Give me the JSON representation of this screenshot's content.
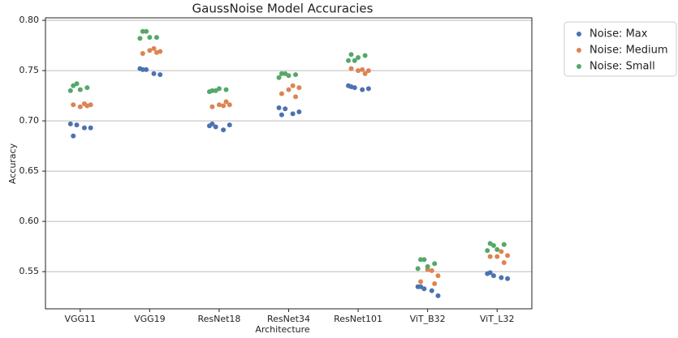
{
  "chart_data": {
    "type": "strip",
    "title": "GaussNoise Model Accuracies",
    "xlabel": "Architecture",
    "ylabel": "Accuracy",
    "categories": [
      "VGG11",
      "VGG19",
      "ResNet18",
      "ResNet34",
      "ResNet101",
      "ViT_B32",
      "ViT_L32"
    ],
    "series": [
      {
        "name": "Noise: Max",
        "color": "#4c72b0",
        "values": [
          [
            0.697,
            0.696,
            0.693,
            0.693,
            0.685
          ],
          [
            0.752,
            0.751,
            0.747,
            0.746,
            0.751
          ],
          [
            0.695,
            0.694,
            0.691,
            0.696,
            0.697
          ],
          [
            0.713,
            0.712,
            0.707,
            0.709,
            0.706
          ],
          [
            0.735,
            0.733,
            0.731,
            0.732,
            0.734
          ],
          [
            0.535,
            0.533,
            0.531,
            0.526,
            0.535
          ],
          [
            0.548,
            0.546,
            0.544,
            0.543,
            0.549
          ]
        ]
      },
      {
        "name": "Noise: Medium",
        "color": "#dd8452",
        "values": [
          [
            0.717,
            0.716,
            0.716,
            0.715,
            0.714
          ],
          [
            0.772,
            0.769,
            0.767,
            0.768,
            0.77
          ],
          [
            0.715,
            0.716,
            0.714,
            0.719,
            0.716
          ],
          [
            0.735,
            0.733,
            0.727,
            0.724,
            0.731
          ],
          [
            0.751,
            0.75,
            0.752,
            0.747,
            0.75
          ],
          [
            0.551,
            0.546,
            0.54,
            0.538,
            0.552
          ],
          [
            0.57,
            0.566,
            0.565,
            0.559,
            0.565
          ]
        ]
      },
      {
        "name": "Noise: Small",
        "color": "#55a868",
        "values": [
          [
            0.735,
            0.733,
            0.731,
            0.73,
            0.737
          ],
          [
            0.789,
            0.783,
            0.783,
            0.782,
            0.789
          ],
          [
            0.73,
            0.731,
            0.732,
            0.729,
            0.73
          ],
          [
            0.747,
            0.746,
            0.745,
            0.743,
            0.747
          ],
          [
            0.766,
            0.765,
            0.763,
            0.76,
            0.76
          ],
          [
            0.562,
            0.558,
            0.555,
            0.553,
            0.562
          ],
          [
            0.578,
            0.577,
            0.572,
            0.571,
            0.576
          ]
        ]
      }
    ],
    "ylim": [
      0.513,
      0.8025
    ],
    "yticks": [
      {
        "value": 0.55,
        "label": "0.55"
      },
      {
        "value": 0.6,
        "label": "0.60"
      },
      {
        "value": 0.65,
        "label": "0.65"
      },
      {
        "value": 0.7,
        "label": "0.70"
      },
      {
        "value": 0.75,
        "label": "0.75"
      },
      {
        "value": 0.8,
        "label": "0.80"
      }
    ],
    "grid": true,
    "legend": "outside-upper-right"
  }
}
